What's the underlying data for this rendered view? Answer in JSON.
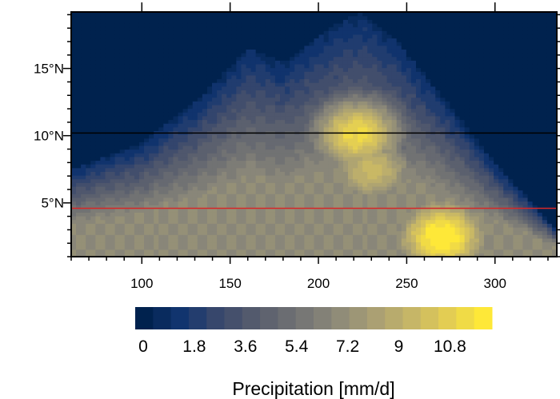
{
  "chart_data": {
    "type": "heatmap",
    "title": "",
    "xlabel": "",
    "ylabel": "",
    "xlim": [
      60,
      335
    ],
    "ylim": [
      1,
      19.2
    ],
    "x_ticks": [
      100,
      150,
      200,
      250,
      300
    ],
    "x_tick_labels": [
      "100",
      "150",
      "200",
      "250",
      "300"
    ],
    "y_ticks": [
      5,
      10,
      15
    ],
    "y_tick_labels": [
      "5°N",
      "10°N",
      "15°N"
    ],
    "grid": false,
    "colorbar": {
      "title": "Precipitation [mm/d]",
      "min": 0,
      "max": 12,
      "levels": 20,
      "tick_values": [
        0,
        1.8,
        3.6,
        5.4,
        7.2,
        9,
        10.8
      ],
      "tick_labels": [
        "0",
        "1.8",
        "3.6",
        "5.4",
        "7.2",
        "9",
        "10.8"
      ],
      "colors": [
        "#00224e",
        "#123570",
        "#3b496c",
        "#575d6d",
        "#707173",
        "#8a8779",
        "#a69d75",
        "#c3b369",
        "#e1cc55",
        "#fee838"
      ]
    },
    "reference_lines": [
      {
        "y": 10.2,
        "color": "#000000"
      },
      {
        "y": 4.6,
        "color": "#d62728"
      }
    ],
    "field": {
      "description": "precipitation maxima in mm/d by x and latitude",
      "peaks": [
        {
          "x": 222,
          "y": 10.2,
          "value": 10.5
        },
        {
          "x": 270,
          "y": 2.5,
          "value": 11.5
        },
        {
          "x": 230,
          "y": 7.5,
          "value": 8.5
        }
      ],
      "rain_belt_top": [
        [
          60,
          7.5
        ],
        [
          100,
          9.5
        ],
        [
          130,
          12.5
        ],
        [
          160,
          16.5
        ],
        [
          180,
          15.5
        ],
        [
          205,
          18.0
        ],
        [
          225,
          19.2
        ],
        [
          245,
          17.0
        ],
        [
          270,
          13.0
        ],
        [
          300,
          8.0
        ],
        [
          335,
          3.0
        ]
      ]
    }
  }
}
